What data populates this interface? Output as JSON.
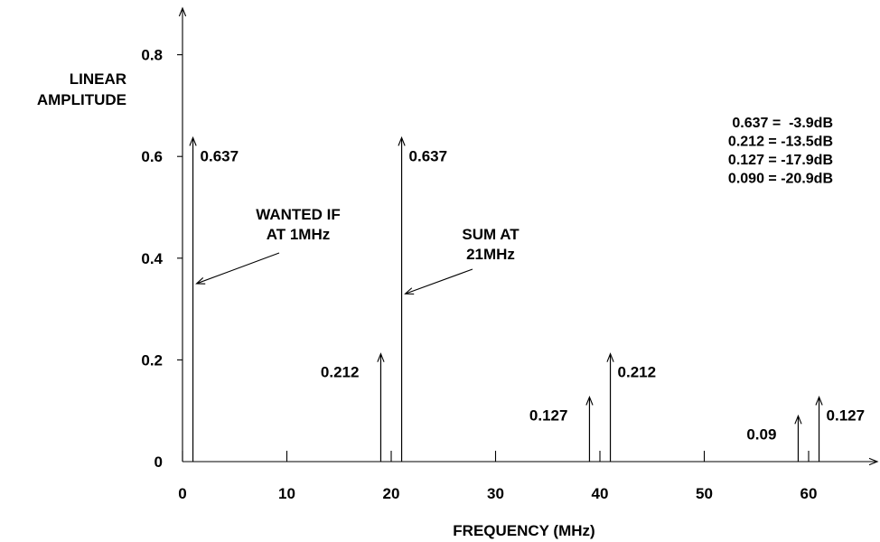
{
  "chart_data": {
    "type": "stem",
    "ylabel_lines": [
      "LINEAR",
      "AMPLITUDE"
    ],
    "xlabel": "FREQUENCY (MHz)",
    "xlim": [
      0,
      66
    ],
    "ylim": [
      0,
      0.8
    ],
    "xticks": [
      0,
      10,
      20,
      30,
      40,
      50,
      60
    ],
    "xtick_labels": [
      "0",
      "10",
      "20",
      "30",
      "40",
      "50",
      "60"
    ],
    "yticks": [
      0,
      0.2,
      0.4,
      0.6,
      0.8
    ],
    "ytick_labels": [
      "0",
      "0.2",
      "0.4",
      "0.6",
      "0.8"
    ],
    "stems": [
      {
        "x": 1,
        "y": 0.637,
        "label": "0.637",
        "label_side": "right"
      },
      {
        "x": 19,
        "y": 0.212,
        "label": "0.212",
        "label_side": "left"
      },
      {
        "x": 21,
        "y": 0.637,
        "label": "0.637",
        "label_side": "right"
      },
      {
        "x": 39,
        "y": 0.127,
        "label": "0.127",
        "label_side": "left"
      },
      {
        "x": 41,
        "y": 0.212,
        "label": "0.212",
        "label_side": "right"
      },
      {
        "x": 59,
        "y": 0.09,
        "label": "0.09",
        "label_side": "left"
      },
      {
        "x": 61,
        "y": 0.127,
        "label": "0.127",
        "label_side": "right"
      }
    ],
    "annotations": [
      {
        "lines": [
          "WANTED IF",
          "AT 1MHz"
        ],
        "target_x": 1,
        "target_y": 0.35
      },
      {
        "lines": [
          "SUM AT",
          "21MHz"
        ],
        "target_x": 21,
        "target_y": 0.33
      }
    ],
    "notes": [
      "0.637 =  -3.9dB",
      "0.212 = -13.5dB",
      "0.127 = -17.9dB",
      "0.090 = -20.9dB"
    ]
  }
}
